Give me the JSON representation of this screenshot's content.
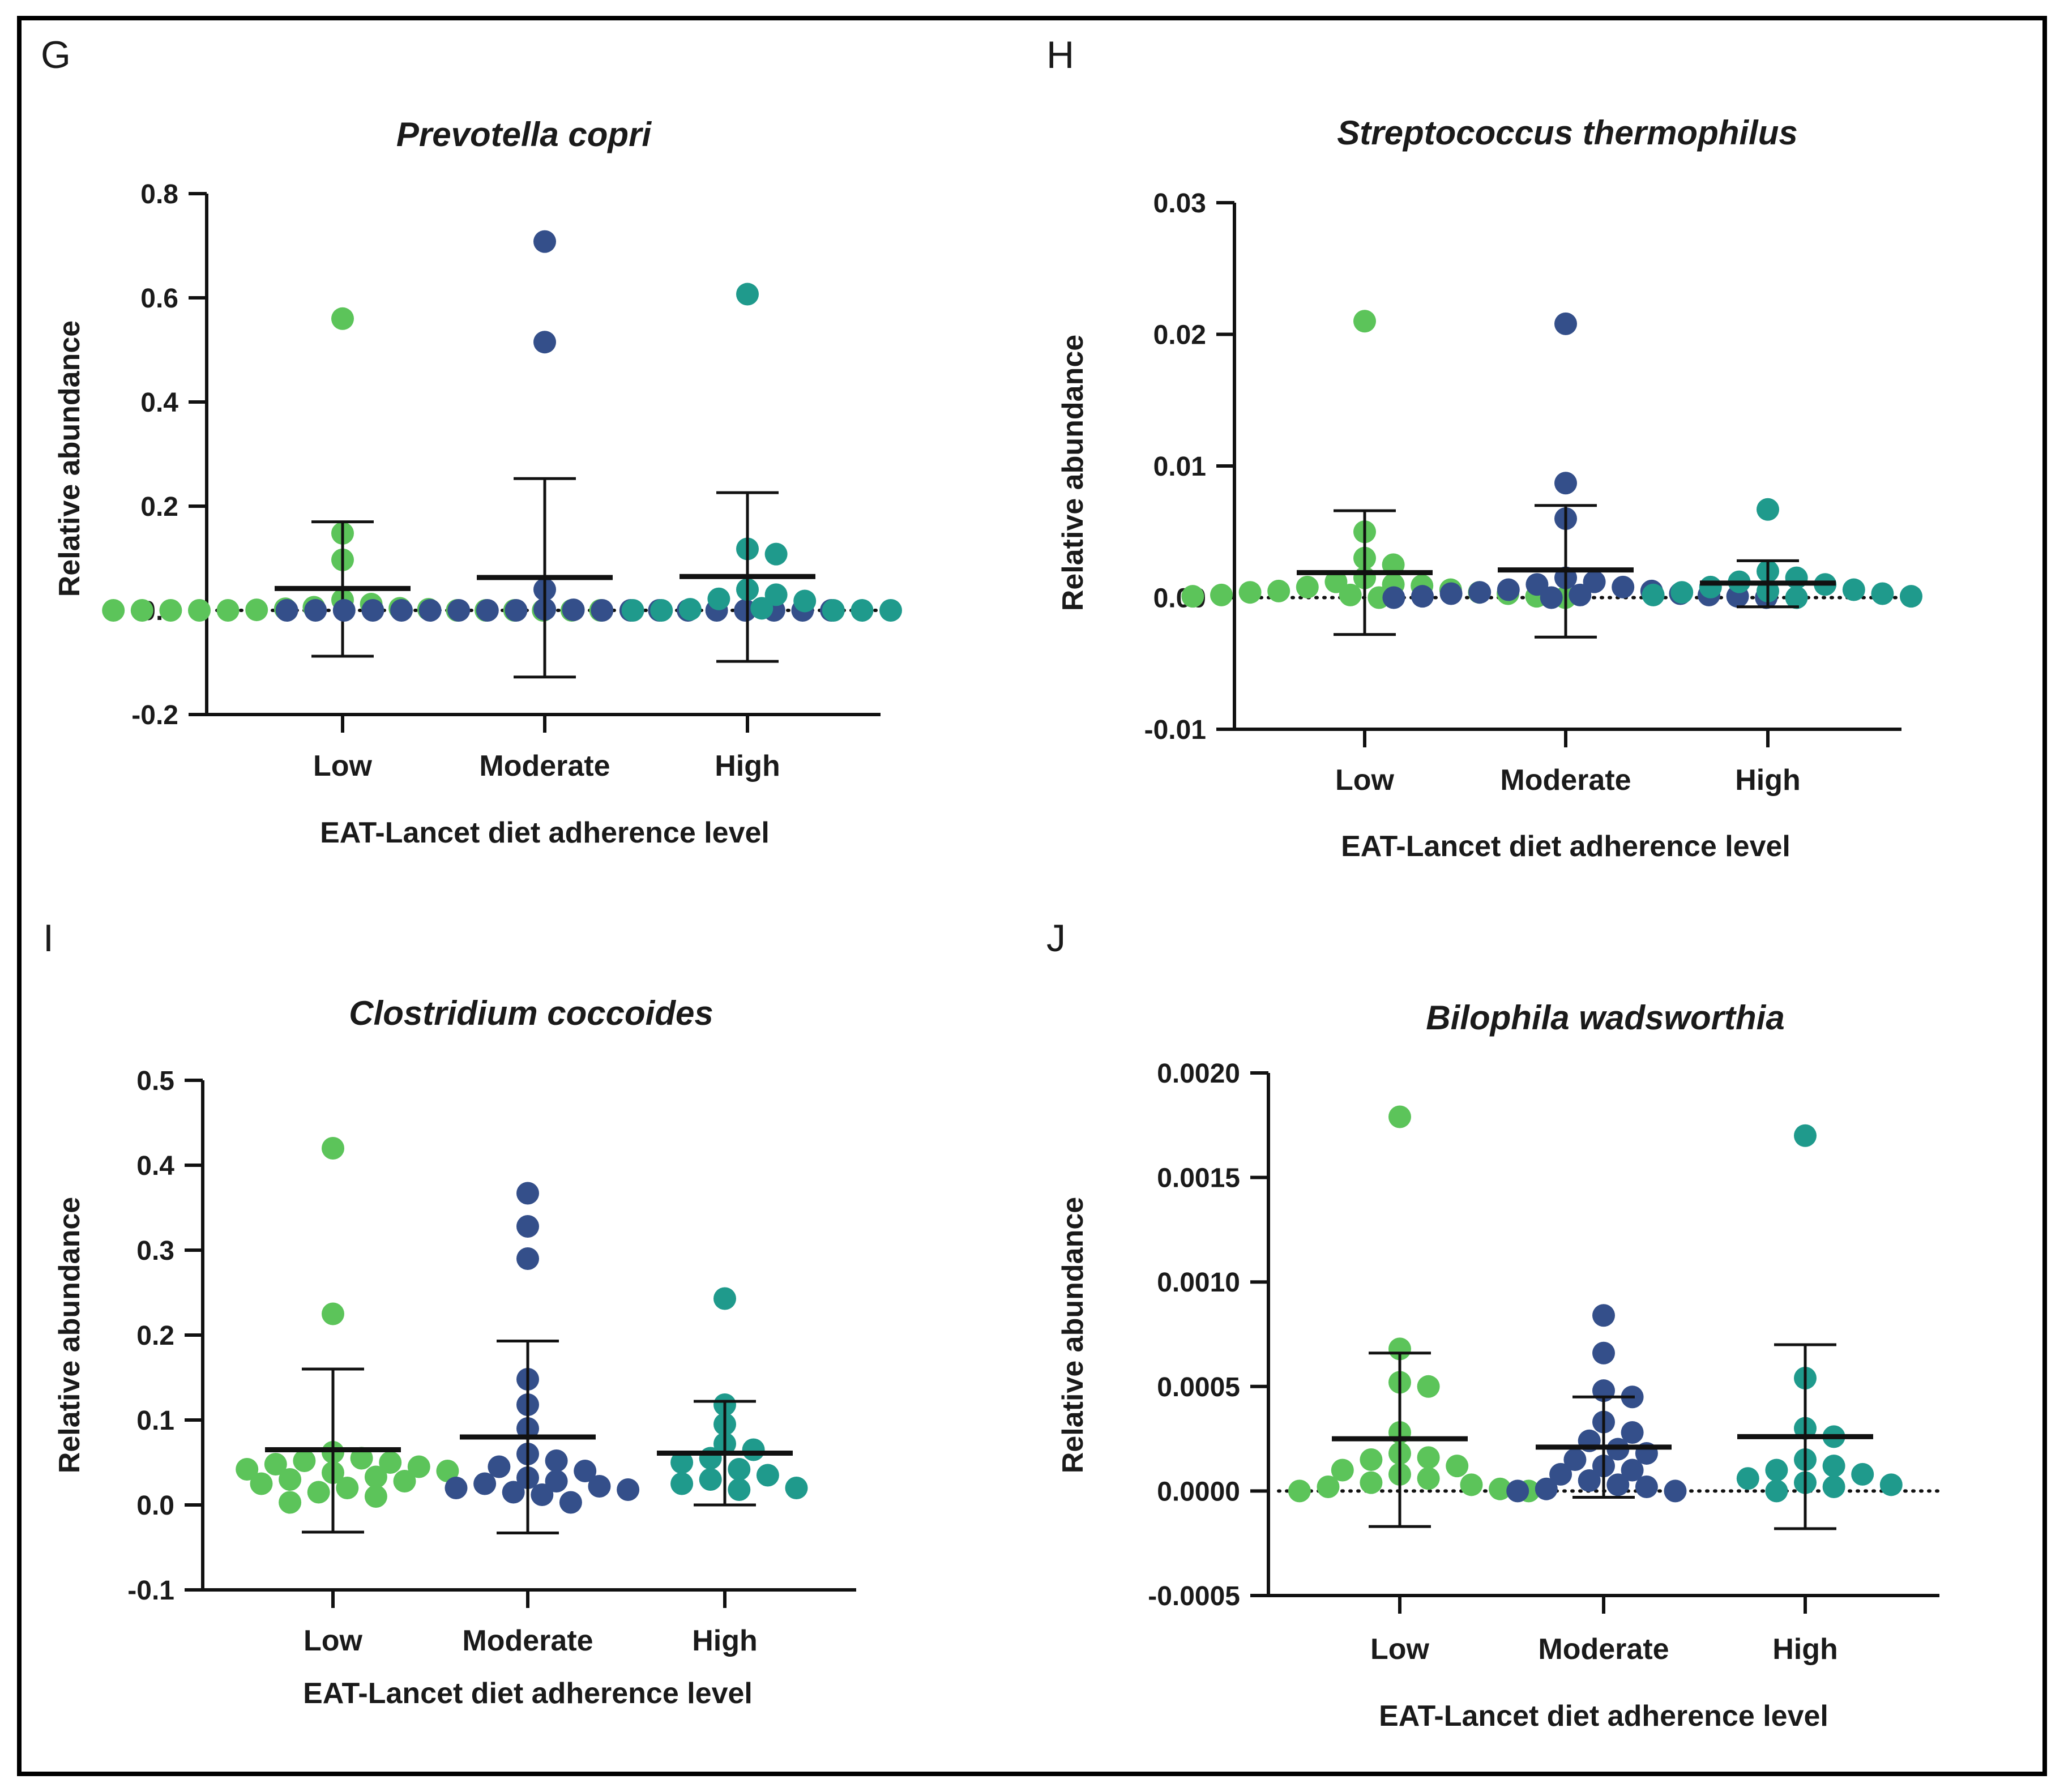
{
  "chart_data": [
    {
      "panel": "G",
      "type": "scatter",
      "title": "Prevotella copri",
      "xlabel": "EAT-Lancet diet adherence level",
      "ylabel": "Relative abundance",
      "ylim": [
        -0.2,
        0.8
      ],
      "yticks": [
        -0.2,
        0.0,
        0.2,
        0.4,
        0.6,
        0.8
      ],
      "ytick_labels": [
        "-0.2",
        "0.0",
        "0.2",
        "0.4",
        "0.6",
        "0.8"
      ],
      "categories": [
        "Low",
        "Moderate",
        "High"
      ],
      "colors": [
        "#5cc45a",
        "#344f8a",
        "#1f9a8c"
      ],
      "reference_line": 0.0,
      "groups": [
        {
          "name": "Low",
          "mean": 0.042,
          "sd_low": -0.088,
          "sd_high": 0.17,
          "points": [
            0.56,
            0.148,
            0.097,
            0.02,
            0.012,
            0.006,
            0.004,
            0.003,
            0.002,
            0.001,
            0,
            0,
            0,
            0,
            0,
            0,
            0,
            0,
            0,
            0,
            0
          ]
        },
        {
          "name": "Moderate",
          "mean": 0.063,
          "sd_low": -0.128,
          "sd_high": 0.253,
          "points": [
            0.708,
            0.515,
            0.04,
            0.002,
            0.001,
            0,
            0,
            0,
            0,
            0,
            0,
            0,
            0,
            0,
            0,
            0,
            0,
            0,
            0,
            0,
            0,
            0,
            0
          ]
        },
        {
          "name": "High",
          "mean": 0.065,
          "sd_low": -0.098,
          "sd_high": 0.226,
          "points": [
            0.607,
            0.118,
            0.108,
            0.04,
            0.03,
            0.022,
            0.018,
            0.004,
            0.002,
            0,
            0,
            0,
            0,
            0
          ]
        }
      ]
    },
    {
      "panel": "H",
      "type": "scatter",
      "title": "Streptococcus thermophilus",
      "xlabel": "EAT-Lancet diet adherence level",
      "ylabel": "Relative abundance",
      "ylim": [
        -0.01,
        0.03
      ],
      "yticks": [
        -0.01,
        0.0,
        0.01,
        0.02,
        0.03
      ],
      "ytick_labels": [
        "-0.01",
        "0.00",
        "0.01",
        "0.02",
        "0.03"
      ],
      "categories": [
        "Low",
        "Moderate",
        "High"
      ],
      "colors": [
        "#5cc45a",
        "#344f8a",
        "#1f9a8c"
      ],
      "reference_line": 0.0,
      "groups": [
        {
          "name": "Low",
          "mean": 0.0019,
          "sd_low": -0.0028,
          "sd_high": 0.0066,
          "points": [
            0.021,
            0.005,
            0.003,
            0.0025,
            0.0015,
            0.0012,
            0.001,
            0.0009,
            0.0008,
            0.0006,
            0.0005,
            0.0004,
            0.0004,
            0.0003,
            0.0002,
            0.0002,
            0.0001,
            0.0001,
            0,
            0
          ]
        },
        {
          "name": "Moderate",
          "mean": 0.0021,
          "sd_low": -0.003,
          "sd_high": 0.007,
          "points": [
            0.0208,
            0.0087,
            0.006,
            0.0015,
            0.0012,
            0.001,
            0.0008,
            0.0006,
            0.0005,
            0.0004,
            0.0003,
            0.0003,
            0.0002,
            0.0002,
            0.0001,
            0.0001,
            0,
            0,
            0
          ]
        },
        {
          "name": "High",
          "mean": 0.0011,
          "sd_low": -0.0007,
          "sd_high": 0.0028,
          "points": [
            0.0067,
            0.002,
            0.0015,
            0.0012,
            0.001,
            0.0008,
            0.0006,
            0.0005,
            0.0004,
            0.0003,
            0.0002,
            0.0001,
            0
          ]
        }
      ]
    },
    {
      "panel": "I",
      "type": "scatter",
      "title": "Clostridium coccoides",
      "xlabel": "EAT-Lancet diet adherence level",
      "ylabel": "Relative abundance",
      "ylim": [
        -0.1,
        0.5
      ],
      "yticks": [
        -0.1,
        0.0,
        0.1,
        0.2,
        0.3,
        0.4,
        0.5
      ],
      "ytick_labels": [
        "-0.1",
        "0.0",
        "0.1",
        "0.2",
        "0.3",
        "0.4",
        "0.5"
      ],
      "categories": [
        "Low",
        "Moderate",
        "High"
      ],
      "colors": [
        "#5cc45a",
        "#344f8a",
        "#1f9a8c"
      ],
      "reference_line": null,
      "groups": [
        {
          "name": "Low",
          "mean": 0.065,
          "sd_low": -0.032,
          "sd_high": 0.16,
          "points": [
            0.42,
            0.225,
            0.062,
            0.055,
            0.052,
            0.05,
            0.048,
            0.045,
            0.042,
            0.04,
            0.038,
            0.033,
            0.03,
            0.028,
            0.025,
            0.02,
            0.015,
            0.01,
            0.003
          ]
        },
        {
          "name": "Moderate",
          "mean": 0.08,
          "sd_low": -0.033,
          "sd_high": 0.193,
          "points": [
            0.367,
            0.328,
            0.29,
            0.148,
            0.118,
            0.09,
            0.06,
            0.052,
            0.045,
            0.04,
            0.032,
            0.028,
            0.025,
            0.022,
            0.02,
            0.018,
            0.015,
            0.012,
            0.003
          ]
        },
        {
          "name": "High",
          "mean": 0.061,
          "sd_low": 0.0,
          "sd_high": 0.122,
          "points": [
            0.243,
            0.118,
            0.095,
            0.072,
            0.065,
            0.055,
            0.05,
            0.042,
            0.035,
            0.03,
            0.025,
            0.02,
            0.018
          ]
        }
      ]
    },
    {
      "panel": "J",
      "type": "scatter",
      "title": "Bilophila wadsworthia",
      "xlabel": "EAT-Lancet diet adherence level",
      "ylabel": "Relative abundance",
      "ylim": [
        -0.0005,
        0.002
      ],
      "yticks": [
        -0.0005,
        0.0,
        0.0005,
        0.001,
        0.0015,
        0.002
      ],
      "ytick_labels": [
        "-0.0005",
        "0.0000",
        "0.0005",
        "0.0010",
        "0.0015",
        "0.0020"
      ],
      "categories": [
        "Low",
        "Moderate",
        "High"
      ],
      "colors": [
        "#5cc45a",
        "#344f8a",
        "#1f9a8c"
      ],
      "reference_line": 0.0,
      "groups": [
        {
          "name": "Low",
          "mean": 0.00025,
          "sd_low": -0.00017,
          "sd_high": 0.00066,
          "points": [
            0.00179,
            0.00068,
            0.00052,
            0.0005,
            0.00028,
            0.00018,
            0.00016,
            0.00015,
            0.00012,
            0.0001,
            8e-05,
            6e-05,
            4e-05,
            3e-05,
            2e-05,
            1e-05,
            0,
            0
          ]
        },
        {
          "name": "Moderate",
          "mean": 0.00021,
          "sd_low": -3e-05,
          "sd_high": 0.00045,
          "points": [
            0.00084,
            0.00066,
            0.00048,
            0.00045,
            0.00033,
            0.00028,
            0.00024,
            0.0002,
            0.00018,
            0.00015,
            0.00012,
            0.0001,
            8e-05,
            5e-05,
            3e-05,
            2e-05,
            1e-05,
            0,
            0
          ]
        },
        {
          "name": "High",
          "mean": 0.00026,
          "sd_low": -0.00018,
          "sd_high": 0.0007,
          "points": [
            0.0017,
            0.00054,
            0.0003,
            0.00026,
            0.00015,
            0.00012,
            0.0001,
            8e-05,
            6e-05,
            4e-05,
            3e-05,
            2e-05,
            0
          ]
        }
      ]
    }
  ]
}
